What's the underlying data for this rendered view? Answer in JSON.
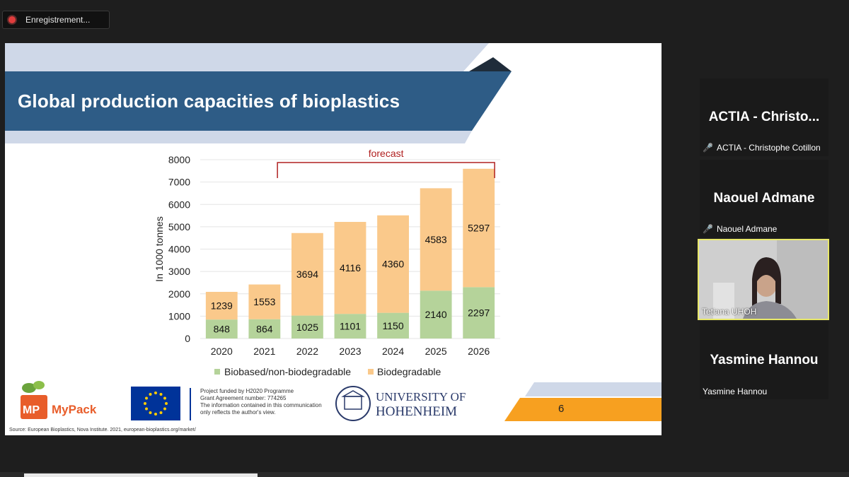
{
  "recording": {
    "label": "Enregistrement..."
  },
  "slide": {
    "title": "Global production capacities of bioplastics",
    "page_number": "6",
    "source": "Source: European Bioplastics, Nova Institute. 2021, european-bioplastics.org/market/",
    "funding_lines": [
      "Project funded by H2020 Programme",
      "Grant Agreement number: 774265",
      "The information contained in this communication",
      "only reflects the author's view."
    ],
    "mypack_logo": "MyPack",
    "university": [
      "UNIVERSITY OF",
      "HOHENHEIM"
    ],
    "colors": {
      "title_band": "#2e5c86",
      "light_band": "#cfd8e8",
      "biobased": "#b5d39a",
      "biodegradable": "#fac98b",
      "forecast": "#b02020",
      "orange": "#f7a020"
    }
  },
  "chart_data": {
    "type": "bar",
    "stacked": true,
    "categories": [
      "2020",
      "2021",
      "2022",
      "2023",
      "2024",
      "2025",
      "2026"
    ],
    "series": [
      {
        "name": "Biobased/non-biodegradable",
        "values": [
          848,
          864,
          1025,
          1101,
          1150,
          2140,
          2297
        ]
      },
      {
        "name": "Biodegradable",
        "values": [
          1239,
          1553,
          3694,
          4116,
          4360,
          4583,
          5297
        ]
      }
    ],
    "ylabel": "In 1000 tonnes",
    "ylim": [
      0,
      8000
    ],
    "yticks": [
      0,
      1000,
      2000,
      3000,
      4000,
      5000,
      6000,
      7000,
      8000
    ],
    "annotation": "forecast",
    "legend": "bottom"
  },
  "participants": [
    {
      "display": "ACTIA - Christo...",
      "label": "ACTIA - Christophe Cotillon",
      "muted": true
    },
    {
      "display": "Naouel Admane",
      "label": "Naouel Admane",
      "muted": true
    },
    {
      "display": "",
      "label": "Tetiana UHOH",
      "muted": false,
      "video": true
    },
    {
      "display": "Yasmine Hannou",
      "label": "Yasmine Hannou",
      "muted": false
    }
  ]
}
